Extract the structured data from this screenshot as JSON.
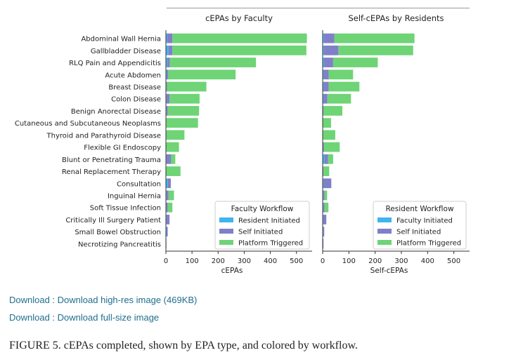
{
  "colors": {
    "resident": "#3fb4ef",
    "self": "#8080c8",
    "platform": "#6ed476",
    "axis": "#333333",
    "text": "#222222",
    "link": "#1f6e8c"
  },
  "chart_data": [
    {
      "type": "bar",
      "orientation": "horizontal",
      "stacked": true,
      "title": "cEPAs by Faculty",
      "xlabel": "cEPAs",
      "xlim": [
        0,
        560
      ],
      "xticks": [
        0,
        100,
        200,
        300,
        400,
        500
      ],
      "categories": [
        "Abdominal Wall Hernia",
        "Gallbladder Disease",
        "RLQ Pain and Appendicitis",
        "Acute Abdomen",
        "Breast Disease",
        "Colon Disease",
        "Benign Anorectal Disease",
        "Cutaneous and Subcutaneous Neoplasms",
        "Thyroid and Parathyroid Disease",
        "Flexible GI Endoscopy",
        "Blunt or Penetrating Trauma",
        "Renal Replacement Therapy",
        "Consultation",
        "Inguinal Hernia",
        "Soft Tissue Infection",
        "Critically Ill Surgery Patient",
        "Small Bowel Obstruction",
        "Necrotizing Pancreatitis"
      ],
      "series": [
        {
          "name": "Resident Initiated",
          "values": [
            5,
            10,
            5,
            3,
            2,
            2,
            2,
            0,
            0,
            0,
            2,
            0,
            7,
            2,
            2,
            2,
            3,
            0
          ]
        },
        {
          "name": "Self Initiated",
          "values": [
            20,
            15,
            10,
            6,
            2,
            12,
            5,
            0,
            0,
            0,
            18,
            0,
            12,
            8,
            5,
            12,
            4,
            2
          ]
        },
        {
          "name": "Platform Triggered",
          "values": [
            515,
            513,
            330,
            258,
            151,
            115,
            120,
            123,
            71,
            50,
            16,
            56,
            0,
            21,
            18,
            0,
            0,
            0
          ]
        }
      ],
      "legend": {
        "title": "Faculty Workflow",
        "position": "lower-right",
        "labels": [
          "Resident Initiated",
          "Self Initiated",
          "Platform Triggered"
        ]
      }
    },
    {
      "type": "bar",
      "orientation": "horizontal",
      "stacked": true,
      "title": "Self-cEPAs by Residents",
      "xlabel": "Self-cEPAs",
      "xlim": [
        0,
        560
      ],
      "xticks": [
        0,
        100,
        200,
        300,
        400,
        500
      ],
      "categories": [
        "Abdominal Wall Hernia",
        "Gallbladder Disease",
        "RLQ Pain and Appendicitis",
        "Acute Abdomen",
        "Breast Disease",
        "Colon Disease",
        "Benign Anorectal Disease",
        "Cutaneous and Subcutaneous Neoplasms",
        "Thyroid and Parathyroid Disease",
        "Flexible GI Endoscopy",
        "Blunt or Penetrating Trauma",
        "Renal Replacement Therapy",
        "Consultation",
        "Inguinal Hernia",
        "Soft Tissue Infection",
        "Critically Ill Surgery Patient",
        "Small Bowel Obstruction",
        "Necrotizing Pancreatitis"
      ],
      "series": [
        {
          "name": "Faculty Initiated",
          "values": [
            5,
            5,
            5,
            3,
            3,
            3,
            0,
            0,
            0,
            0,
            7,
            0,
            3,
            2,
            2,
            2,
            2,
            0
          ]
        },
        {
          "name": "Self Initiated",
          "values": [
            40,
            55,
            35,
            20,
            20,
            15,
            3,
            0,
            0,
            5,
            13,
            3,
            30,
            5,
            5,
            12,
            4,
            3
          ]
        },
        {
          "name": "Platform Triggered",
          "values": [
            305,
            285,
            170,
            93,
            117,
            90,
            72,
            32,
            48,
            60,
            20,
            22,
            0,
            10,
            15,
            0,
            0,
            0
          ]
        }
      ],
      "legend": {
        "title": "Resident Workflow",
        "position": "lower-right",
        "labels": [
          "Faculty Initiated",
          "Self Initiated",
          "Platform Triggered"
        ]
      }
    }
  ],
  "links": [
    {
      "prefix": "Download : ",
      "label": "Download high-res image (469KB)"
    },
    {
      "prefix": "Download : ",
      "label": "Download full-size image"
    }
  ],
  "caption": "FIGURE 5. cEPAs completed, shown by EPA type, and colored by workflow."
}
